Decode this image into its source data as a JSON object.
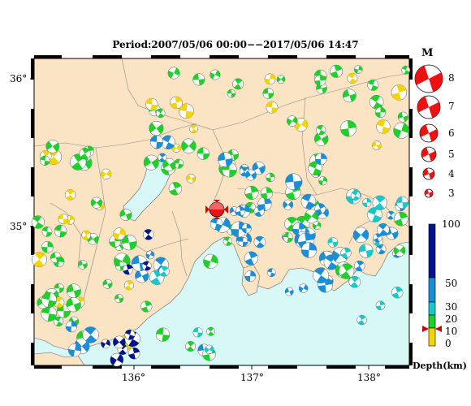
{
  "title": "Period:2007/05/06 00:00−−2017/05/06 14:47",
  "map": {
    "lat_labels": [
      "36°",
      "35°"
    ],
    "lon_labels": [
      "136°",
      "137°",
      "138°"
    ],
    "lon_range": [
      135.25,
      138.33
    ],
    "lat_range": [
      34.45,
      36.1
    ]
  },
  "magnitude_legend": {
    "heading": "M",
    "items": [
      "8",
      "7",
      "6",
      "5",
      "4",
      "3"
    ]
  },
  "depth_scale": {
    "ticks": [
      "100",
      "50",
      "30",
      "20",
      "10",
      "0"
    ],
    "label": "Depth(km)",
    "colors": {
      "shallow": "#f2d400",
      "mid_shallow": "#1fcf2a",
      "mid": "#1a8fd8",
      "deep": "#00148c",
      "cyan": "#19c9c9"
    }
  },
  "colors": {
    "land": "#fbe4c4",
    "sea": "#d8f8f8",
    "border": "#8a8a8a",
    "mechanism_red": "#ee1111"
  }
}
